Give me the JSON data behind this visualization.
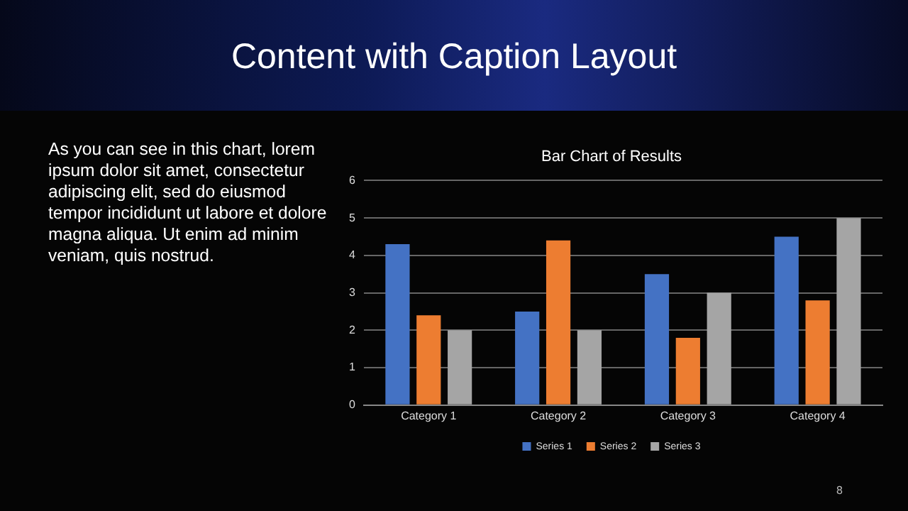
{
  "chart_data": {
    "type": "bar",
    "title": "Content with Caption Layout",
    "subtitle": "Bar Chart of Results",
    "annotations": [
      "As you can see in this chart, lorem ipsum dolor sit amet, consectetur adipiscing elit, sed do eiusmod tempor incididunt ut labore et dolore magna aliqua. Ut enim ad minim veniam, quis nostrud.",
      "8"
    ],
    "categories": [
      "Category 1",
      "Category 2",
      "Category 3",
      "Category 4"
    ],
    "series": [
      {
        "name": "Series 1",
        "color": "#4472c4",
        "values": [
          4.3,
          2.5,
          3.5,
          4.5
        ]
      },
      {
        "name": "Series 2",
        "color": "#ed7d31",
        "values": [
          2.4,
          4.4,
          1.8,
          2.8
        ]
      },
      {
        "name": "Series 3",
        "color": "#a5a5a5",
        "values": [
          2,
          2,
          3,
          5
        ]
      }
    ],
    "ylim": [
      0,
      6
    ],
    "yticks": [
      0,
      1,
      2,
      3,
      4,
      5,
      6
    ],
    "grid": "y",
    "legend": "bottom"
  }
}
